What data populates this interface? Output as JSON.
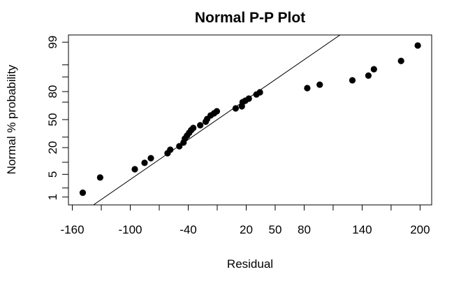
{
  "chart_data": {
    "type": "scatter",
    "title": "Normal P-P Plot",
    "x_label": "Residual",
    "y_label": "Normal % probability",
    "y_scale": "probit",
    "color": "#000000",
    "x": [
      -149.2,
      -131.2,
      -95.3,
      -85.2,
      -78.7,
      -61.4,
      -58.6,
      -49.2,
      -44.9,
      -43.5,
      -41.3,
      -39.1,
      -37.0,
      -34.8,
      -27.6,
      -21.9,
      -20.4,
      -16.8,
      -13.2,
      -10.4,
      9.1,
      15.5,
      16.3,
      19.1,
      22.7,
      30.6,
      34.2,
      83.2,
      96.1,
      129.9,
      146.5,
      152.2,
      180.3,
      197.6
    ],
    "values": [
      1.4,
      4.1,
      6.8,
      9.7,
      12.3,
      15.6,
      18.3,
      21.2,
      24.5,
      28.4,
      31.5,
      34.5,
      37.6,
      40.1,
      43.3,
      47.5,
      50.8,
      55.0,
      57.5,
      59.9,
      63.2,
      65.5,
      70.0,
      71.5,
      73.6,
      77.5,
      79.4,
      82.8,
      85.3,
      88.1,
      90.7,
      93.5,
      96.1,
      98.7
    ],
    "reference_line": {
      "mean": -10,
      "sd": 50
    },
    "xlim": [
      -164,
      212
    ],
    "ylim": [
      0.52,
      99.45
    ],
    "xticks": [
      -160,
      -100,
      -40,
      20,
      50,
      80,
      140,
      200
    ],
    "xticks_unlabeled": [
      -130,
      -70,
      -10,
      110,
      170
    ],
    "yticks": [
      1,
      5,
      20,
      50,
      80,
      99
    ],
    "yticks_unlabeled": [
      2,
      10,
      30,
      70,
      90,
      95
    ]
  }
}
